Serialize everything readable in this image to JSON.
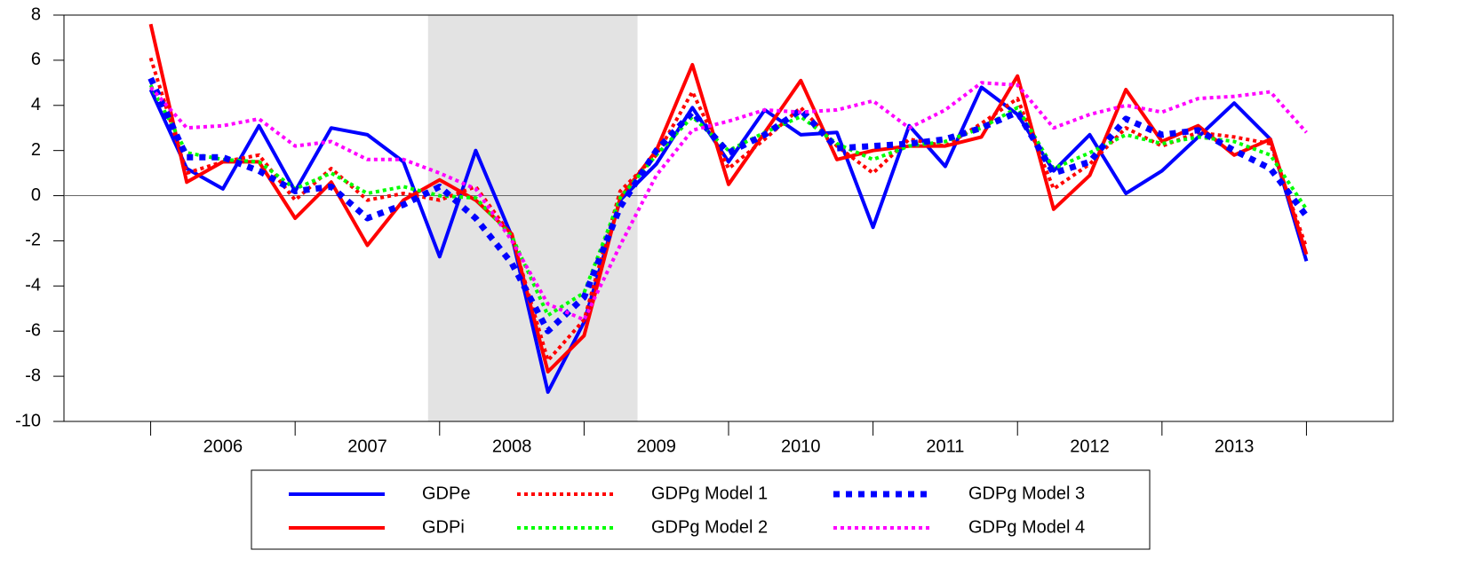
{
  "chart_data": {
    "type": "line",
    "x": [
      2006,
      2006.25,
      2006.5,
      2006.75,
      2007,
      2007.25,
      2007.5,
      2007.75,
      2008,
      2008.25,
      2008.5,
      2008.75,
      2009,
      2009.25,
      2009.5,
      2009.75,
      2010,
      2010.25,
      2010.5,
      2010.75,
      2011,
      2011.25,
      2011.5,
      2011.75,
      2012,
      2012.25,
      2012.5,
      2012.75,
      2013,
      2013.25,
      2013.5,
      2013.75,
      2014
    ],
    "series": [
      {
        "name": "GDPe",
        "color": "#0000ff",
        "dash": "solid",
        "values": [
          4.7,
          1.2,
          0.3,
          3.1,
          0.2,
          3.0,
          2.7,
          1.5,
          -2.7,
          2.0,
          -1.8,
          -8.7,
          -5.6,
          -0.2,
          1.4,
          3.9,
          1.5,
          3.8,
          2.7,
          2.8,
          -1.4,
          3.1,
          1.3,
          4.8,
          3.6,
          1.1,
          2.7,
          0.1,
          1.1,
          2.6,
          4.1,
          2.5,
          -2.9
        ]
      },
      {
        "name": "GDPi",
        "color": "#ff0000",
        "dash": "solid",
        "values": [
          7.6,
          0.6,
          1.5,
          1.5,
          -1.0,
          0.6,
          -2.2,
          -0.2,
          0.7,
          -0.2,
          -1.7,
          -7.8,
          -6.2,
          -0.1,
          2.0,
          5.8,
          0.5,
          2.8,
          5.1,
          1.6,
          2.0,
          2.2,
          2.2,
          2.6,
          5.3,
          -0.6,
          0.9,
          4.7,
          2.4,
          3.1,
          1.8,
          2.5,
          -2.6
        ]
      },
      {
        "name": "GDPg Model 1",
        "color": "#ff0000",
        "dash": "dotted",
        "values": [
          6.1,
          1.0,
          1.5,
          1.8,
          -0.2,
          1.2,
          -0.2,
          0.1,
          -0.2,
          0.4,
          -1.8,
          -7.3,
          -5.5,
          0.2,
          1.8,
          4.6,
          1.2,
          2.5,
          3.9,
          2.2,
          1.0,
          2.5,
          2.2,
          3.2,
          4.3,
          0.3,
          1.4,
          3.0,
          2.2,
          2.8,
          2.6,
          2.3,
          -2.3
        ]
      },
      {
        "name": "GDPg Model 2",
        "color": "#00ff00",
        "dash": "dotted",
        "values": [
          4.9,
          1.9,
          1.6,
          1.5,
          0.3,
          1.0,
          0.1,
          0.4,
          0.0,
          -0.1,
          -1.8,
          -5.3,
          -4.3,
          -0.1,
          1.8,
          3.5,
          2.0,
          2.8,
          3.5,
          2.3,
          1.6,
          2.2,
          2.4,
          3.0,
          3.9,
          1.2,
          1.9,
          2.7,
          2.3,
          2.6,
          2.4,
          1.8,
          -0.6
        ]
      },
      {
        "name": "GDPg Model 3",
        "color": "#0000ff",
        "dash": "dotted-thick",
        "values": [
          5.2,
          1.7,
          1.7,
          1.1,
          0.2,
          0.4,
          -1.0,
          -0.4,
          0.4,
          -1.0,
          -3.0,
          -6.0,
          -4.5,
          -0.5,
          2.0,
          3.7,
          1.9,
          2.7,
          3.8,
          2.1,
          2.2,
          2.3,
          2.5,
          3.0,
          3.7,
          1.0,
          1.5,
          3.4,
          2.7,
          2.9,
          2.0,
          1.2,
          -0.9
        ]
      },
      {
        "name": "GDPg Model 4",
        "color": "#ff00ff",
        "dash": "dotted",
        "values": [
          4.8,
          3.0,
          3.1,
          3.4,
          2.2,
          2.4,
          1.6,
          1.6,
          1.0,
          0.3,
          -2.0,
          -4.8,
          -5.5,
          -2.2,
          0.9,
          2.9,
          3.3,
          3.8,
          3.7,
          3.8,
          4.2,
          3.0,
          3.8,
          5.0,
          4.9,
          3.0,
          3.6,
          4.0,
          3.7,
          4.3,
          4.4,
          4.6,
          2.8
        ]
      }
    ],
    "xlim": [
      2005.4,
      2014.6
    ],
    "xticks": [
      {
        "value": 2006.5,
        "label": "2006"
      },
      {
        "value": 2007.5,
        "label": "2007"
      },
      {
        "value": 2008.5,
        "label": "2008"
      },
      {
        "value": 2009.5,
        "label": "2009"
      },
      {
        "value": 2010.5,
        "label": "2010"
      },
      {
        "value": 2011.5,
        "label": "2011"
      },
      {
        "value": 2012.5,
        "label": "2012"
      },
      {
        "value": 2013.5,
        "label": "2013"
      }
    ],
    "xtick_marks": [
      2006,
      2007,
      2008,
      2009,
      2010,
      2011,
      2012,
      2013,
      2014
    ],
    "ylim": [
      -10,
      8
    ],
    "yticks": [
      -10,
      -8,
      -6,
      -4,
      -2,
      0,
      2,
      4,
      6,
      8
    ],
    "shade": [
      2007.92,
      2009.37
    ],
    "shade_color": "#e3e3e3",
    "zero_line": true,
    "grid": false
  }
}
